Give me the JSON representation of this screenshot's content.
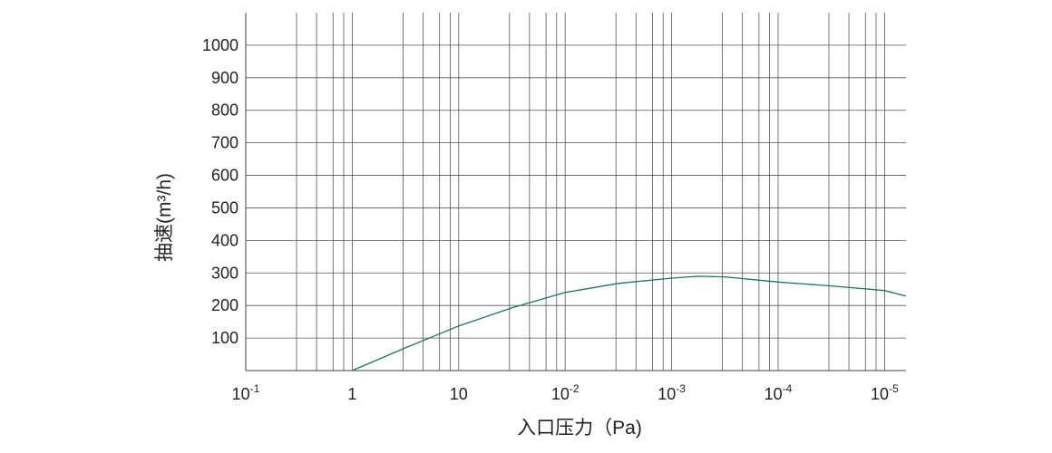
{
  "chart_data": {
    "type": "line",
    "xlabel": "入口压力（Pa)",
    "ylabel": "抽速(m³/h)",
    "x_scale": "log",
    "x_ticks": [
      {
        "base": "10",
        "exp": "-1"
      },
      {
        "base": "1",
        "exp": ""
      },
      {
        "base": "10",
        "exp": ""
      },
      {
        "base": "10",
        "exp": "-2"
      },
      {
        "base": "10",
        "exp": "-3"
      },
      {
        "base": "10",
        "exp": "-4"
      },
      {
        "base": "10",
        "exp": "-5"
      }
    ],
    "xlim": [
      0,
      6.2
    ],
    "y_ticks": [
      "100",
      "200",
      "300",
      "400",
      "500",
      "600",
      "700",
      "800",
      "900",
      "1000"
    ],
    "ylim": [
      0,
      1100
    ],
    "grid": true,
    "series": [
      {
        "color": "#1a7a45",
        "x": [
          1,
          1.5,
          2,
          2.5,
          3,
          3.5,
          4,
          4.25,
          4.5,
          5,
          5.5,
          6,
          6.2
        ],
        "y": [
          0,
          70,
          137,
          193,
          240,
          268,
          284,
          290,
          288,
          272,
          260,
          246,
          229
        ]
      }
    ]
  }
}
